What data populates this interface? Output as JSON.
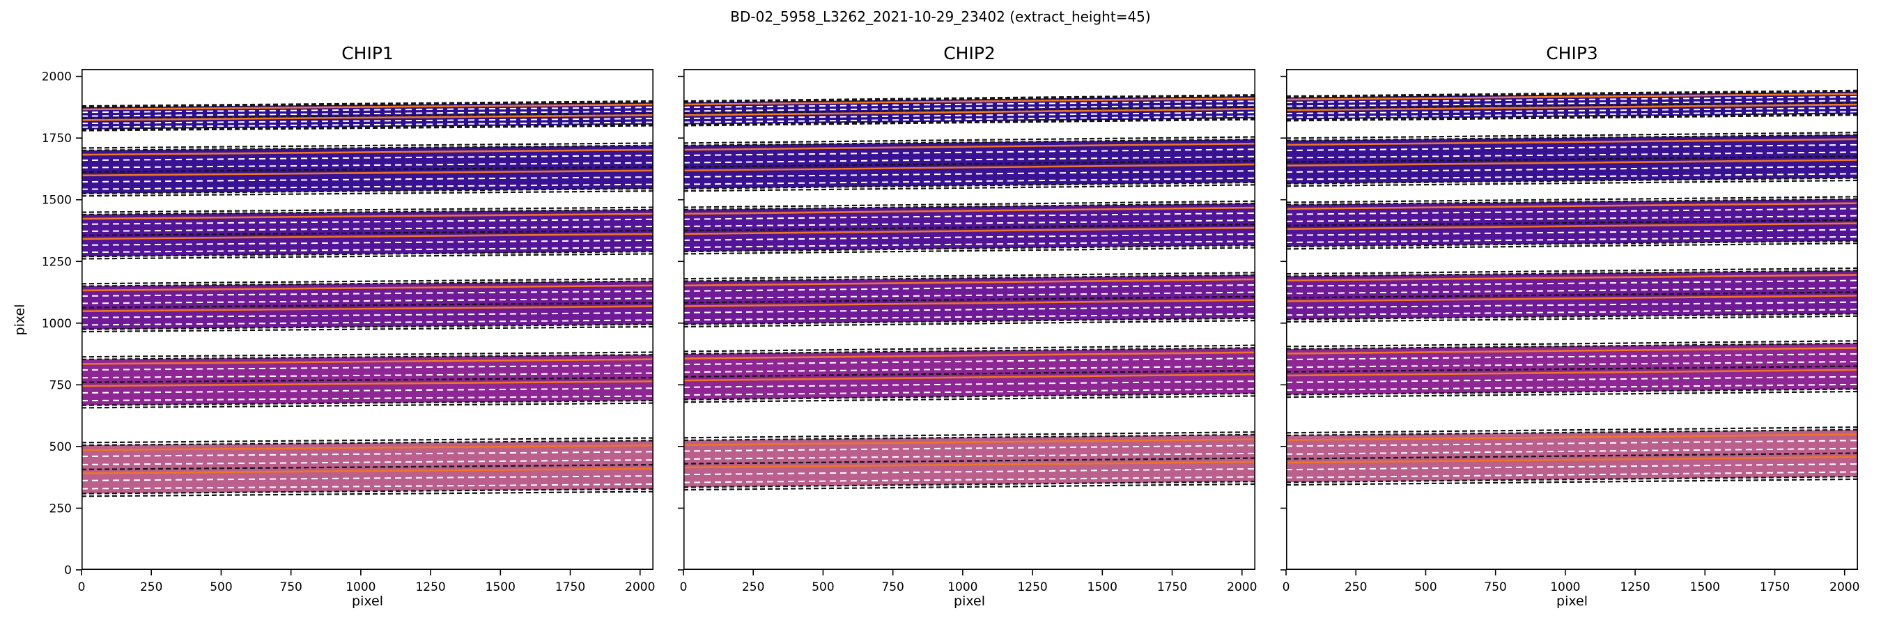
{
  "figure": {
    "title": "BD-02_5958_L3262_2021-10-29_23402  (extract_height=45)",
    "background": "#ffffff"
  },
  "chart_data": {
    "type": "area",
    "title": "BD-02_5958_L3262_2021-10-29_23402  (extract_height=45)",
    "xlabel": "pixel",
    "ylabel": "pixel",
    "xlim": [
      0,
      2048
    ],
    "ylim": [
      0,
      2030
    ],
    "x_ticks": [
      0,
      250,
      500,
      750,
      1000,
      1250,
      1500,
      1750,
      2000
    ],
    "y_ticks": [
      0,
      250,
      500,
      750,
      1000,
      1250,
      1500,
      1750,
      2000
    ],
    "grid": false,
    "legend": "none",
    "band_colors": [
      "#2c0f92",
      "#381293",
      "#521597",
      "#6f1a97",
      "#8e2794",
      "#bb5f8d"
    ],
    "style": {
      "black_fracs": [
        0,
        0.5,
        1
      ],
      "white_fracs": [
        0.1,
        0.27,
        0.6,
        0.77
      ],
      "orange_fracs": [
        0.42,
        0.9
      ],
      "outer_offset": 0.055,
      "black_color": "#141414",
      "white_color": "#ffffff",
      "orange_color": "#ee7622"
    },
    "panels": [
      {
        "title": "CHIP1",
        "show_y_labels": true,
        "bands": [
          {
            "left": [
              1785,
              1875
            ],
            "right": [
              1805,
              1895
            ]
          },
          {
            "left": [
              1525,
              1700
            ],
            "right": [
              1545,
              1720
            ]
          },
          {
            "left": [
              1270,
              1440
            ],
            "right": [
              1290,
              1460
            ]
          },
          {
            "left": [
              975,
              1150
            ],
            "right": [
              995,
              1170
            ]
          },
          {
            "left": [
              667,
              853
            ],
            "right": [
              686,
              872
            ]
          },
          {
            "left": [
              309,
              505
            ],
            "right": [
              328,
              524
            ]
          }
        ]
      },
      {
        "title": "CHIP2",
        "show_y_labels": false,
        "bands": [
          {
            "left": [
              1805,
              1895
            ],
            "right": [
              1830,
              1920
            ]
          },
          {
            "left": [
              1545,
              1720
            ],
            "right": [
              1570,
              1745
            ]
          },
          {
            "left": [
              1290,
              1460
            ],
            "right": [
              1315,
              1485
            ]
          },
          {
            "left": [
              995,
              1170
            ],
            "right": [
              1020,
              1195
            ]
          },
          {
            "left": [
              690,
              875
            ],
            "right": [
              715,
              900
            ]
          },
          {
            "left": [
              335,
              525
            ],
            "right": [
              358,
              548
            ]
          }
        ]
      },
      {
        "title": "CHIP3",
        "show_y_labels": false,
        "bands": [
          {
            "left": [
              1825,
              1915
            ],
            "right": [
              1848,
              1938
            ]
          },
          {
            "left": [
              1565,
              1740
            ],
            "right": [
              1588,
              1763
            ]
          },
          {
            "left": [
              1310,
              1480
            ],
            "right": [
              1333,
              1503
            ]
          },
          {
            "left": [
              1015,
              1190
            ],
            "right": [
              1038,
              1213
            ]
          },
          {
            "left": [
              710,
              895
            ],
            "right": [
              733,
              918
            ]
          },
          {
            "left": [
              355,
              545
            ],
            "right": [
              378,
              568
            ]
          }
        ]
      }
    ]
  }
}
